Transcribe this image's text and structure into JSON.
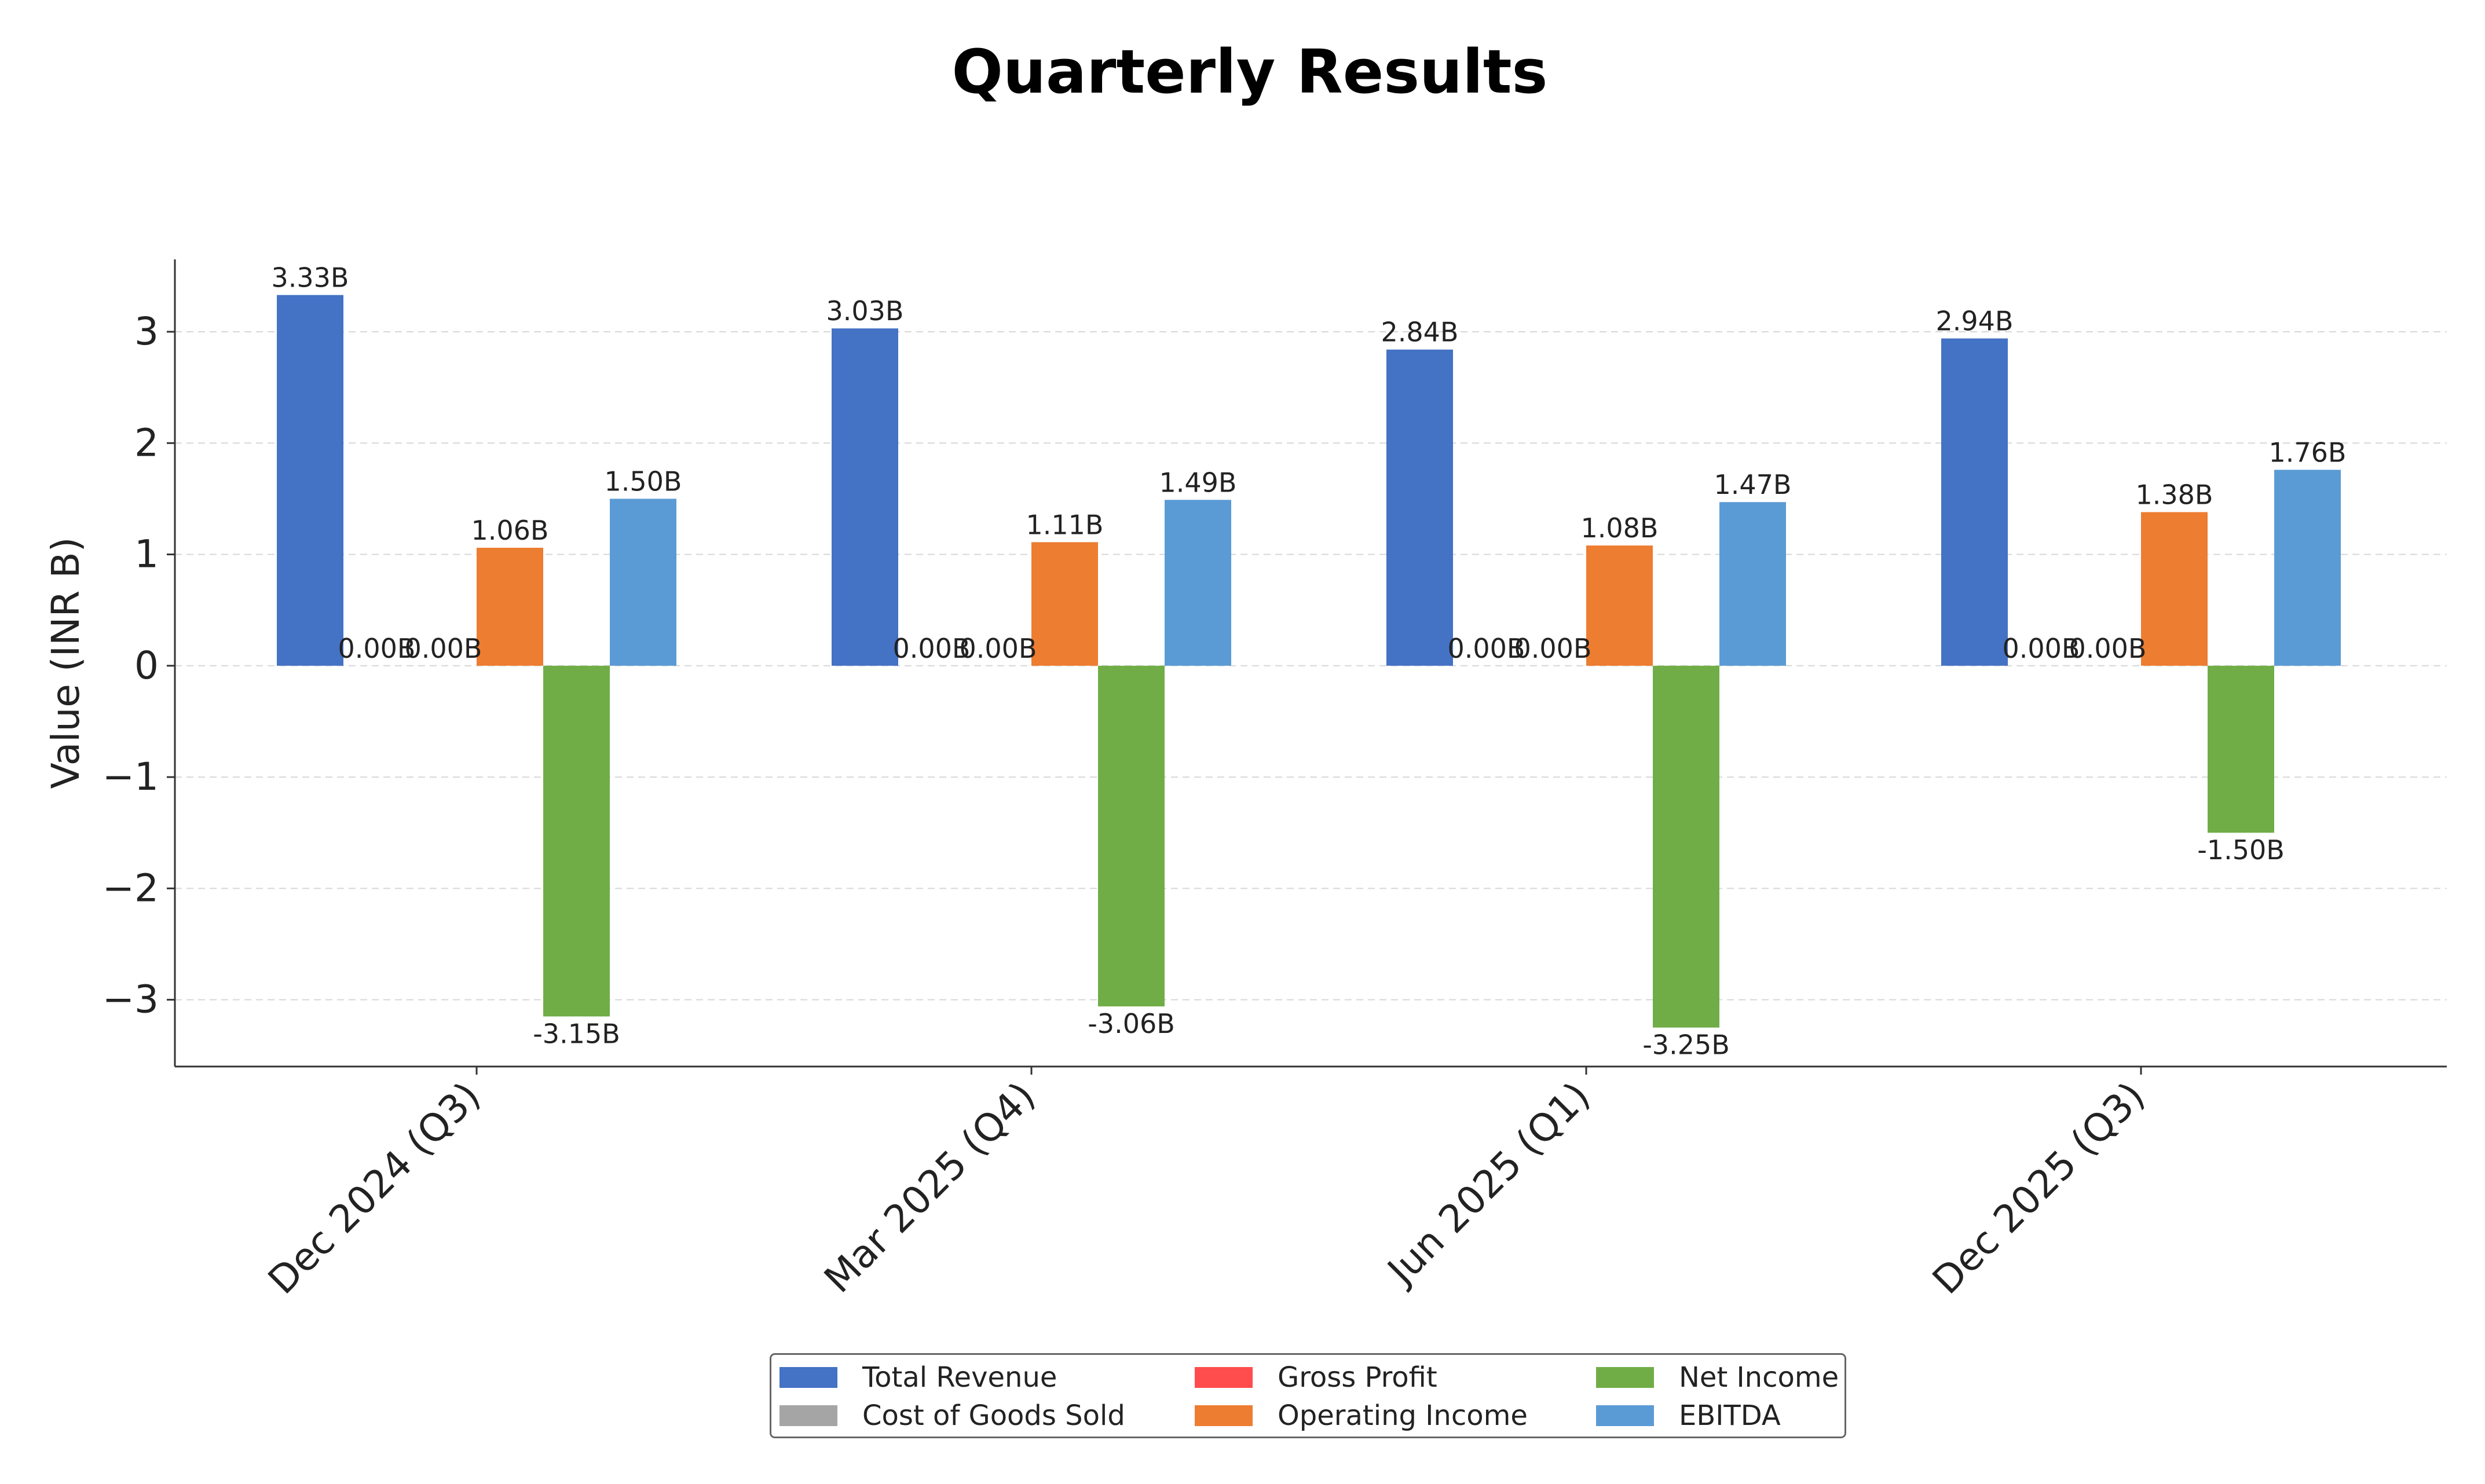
{
  "chart_data": {
    "type": "bar",
    "title": "Quarterly Results",
    "xlabel": "",
    "ylabel": "Value (INR B)",
    "categories": [
      "Dec 2024 (Q3)",
      "Mar 2025 (Q4)",
      "Jun 2025 (Q1)",
      "Dec 2025 (Q3)"
    ],
    "series": [
      {
        "name": "Total Revenue",
        "color": "#4472c4",
        "values": [
          3.33,
          3.03,
          2.84,
          2.94
        ],
        "labels": [
          "3.33B",
          "3.03B",
          "2.84B",
          "2.94B"
        ]
      },
      {
        "name": "Cost of Goods Sold",
        "color": "#a5a5a5",
        "values": [
          0.0,
          0.0,
          0.0,
          0.0
        ],
        "labels": [
          "0.00B",
          "0.00B",
          "0.00B",
          "0.00B"
        ]
      },
      {
        "name": "Gross Profit",
        "color": "#ff4c4c",
        "values": [
          0.0,
          0.0,
          0.0,
          0.0
        ],
        "labels": [
          "0.00B",
          "0.00B",
          "0.00B",
          "0.00B"
        ]
      },
      {
        "name": "Operating Income",
        "color": "#ed7d31",
        "values": [
          1.06,
          1.11,
          1.08,
          1.38
        ],
        "labels": [
          "1.06B",
          "1.11B",
          "1.08B",
          "1.38B"
        ]
      },
      {
        "name": "Net Income",
        "color": "#70ad47",
        "values": [
          -3.15,
          -3.06,
          -3.25,
          -1.5
        ],
        "labels": [
          "-3.15B",
          "-3.06B",
          "-3.25B",
          "-1.50B"
        ]
      },
      {
        "name": "EBITDA",
        "color": "#5b9bd5",
        "values": [
          1.5,
          1.49,
          1.47,
          1.76
        ],
        "labels": [
          "1.50B",
          "1.49B",
          "1.47B",
          "1.76B"
        ]
      }
    ],
    "ylim": [
      -3.6,
      3.65
    ],
    "yticks": [
      -3,
      -2,
      -1,
      0,
      1,
      2,
      3
    ],
    "ytick_labels": [
      "−3",
      "−2",
      "−1",
      "0",
      "1",
      "2",
      "3"
    ],
    "grid": true,
    "legend_position": "bottom-center"
  }
}
